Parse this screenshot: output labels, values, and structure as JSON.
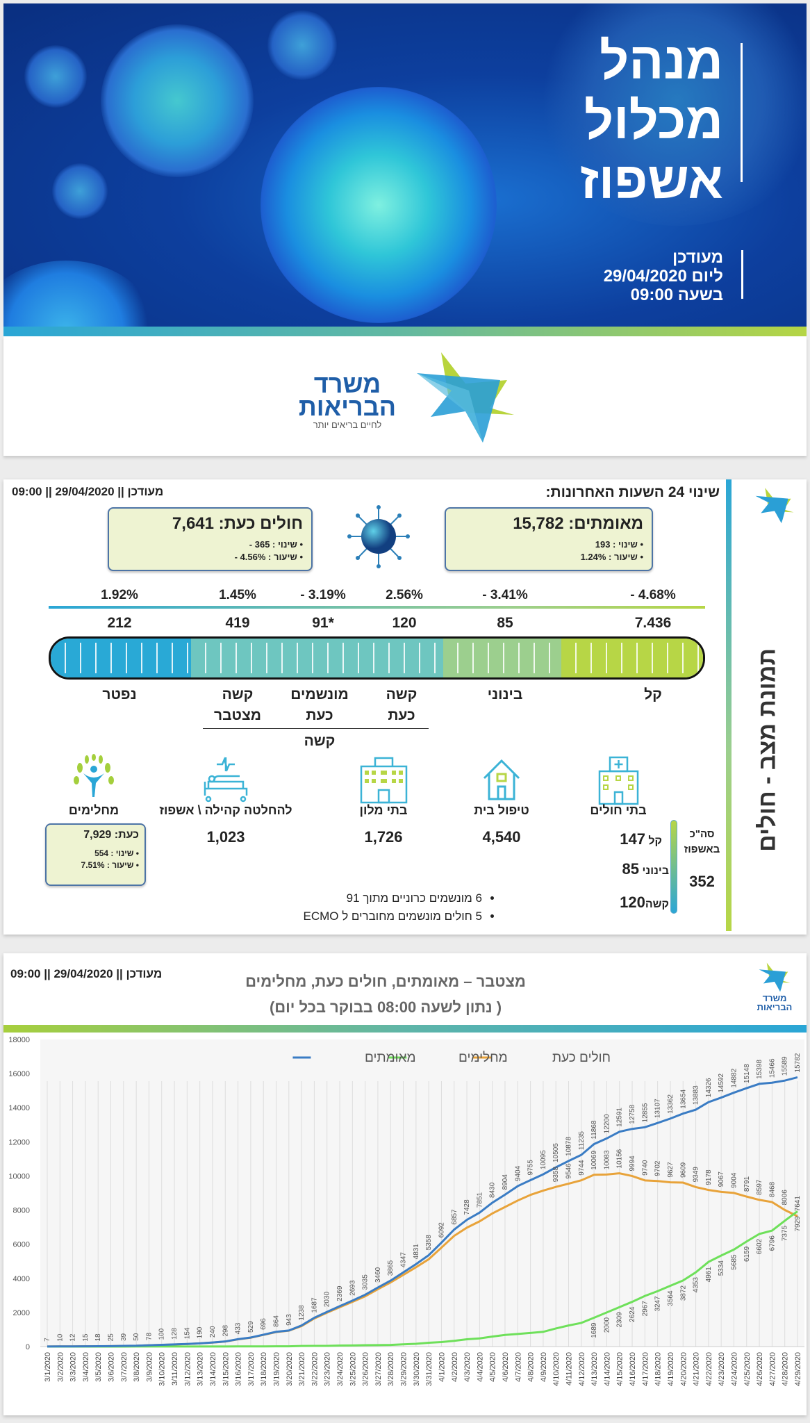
{
  "banner": {
    "title_lines": [
      "מנהל",
      "מכלול",
      "אשפוז"
    ],
    "subtitle_lines": [
      "מעודכן",
      "ליום 29/04/2020",
      "בשעה 09:00"
    ]
  },
  "logo": {
    "name_line1": "משרד",
    "name_line2": "הבריאות",
    "slogan": "לחיים בריאים יותר"
  },
  "status_card": {
    "vertical_title": "תמונת מצב - חולים",
    "updated": "מעודכן || 29/04/2020 || 09:00",
    "heading": "שינוי 24 השעות האחרונות:",
    "confirmed": {
      "label": "מאומתים:",
      "value": "15,782",
      "change": "• שינוי : 193",
      "rate": "• שיעור : 1.24%"
    },
    "active": {
      "label": "חולים כעת:",
      "value": "7,641",
      "change": "• שינוי : 365 -",
      "rate": "• שיעור : 4.56% -"
    },
    "severity": [
      {
        "label_lines": [
          "נפטר"
        ],
        "count": "212",
        "change": "1.92%",
        "color": "#29a9d6"
      },
      {
        "label_lines": [
          "קשה",
          "מצטבר"
        ],
        "count": "419",
        "change": "1.45%",
        "color": "#6ec6c0"
      },
      {
        "label_lines": [
          "מונשמים",
          "כעת"
        ],
        "count": "91*",
        "change": "- 3.19%",
        "color": "#6ec6c0"
      },
      {
        "label_lines": [
          "קשה",
          "כעת"
        ],
        "count": "120",
        "change": "2.56%",
        "color": "#6ec6c0"
      },
      {
        "label_lines": [
          "בינוני"
        ],
        "count": "85",
        "change": "- 3.41%",
        "color": "#9ccf8e"
      },
      {
        "label_lines": [
          "קל"
        ],
        "count": "7.436",
        "change": "- 4.68%",
        "color": "#b7d646"
      }
    ],
    "severe_group_label": "קשה",
    "locations": [
      {
        "icon": "recovered-person-icon",
        "label": "מחלימים"
      },
      {
        "icon": "hospital-bed-icon",
        "label": "להחלטה קהילה \\ אשפוז",
        "value": "1,023"
      },
      {
        "icon": "hotel-icon",
        "label": "בתי מלון",
        "value": "1,726"
      },
      {
        "icon": "house-icon",
        "label": "טיפול בית",
        "value": "4,540"
      },
      {
        "icon": "hospital-icon",
        "label": "בתי חולים"
      }
    ],
    "recovered_box": {
      "label": "כעת:",
      "value": "7,929",
      "change": "• שינוי : 554",
      "rate": "• שיעור : 7.51%"
    },
    "hospital_breakdown": [
      {
        "label": "קל",
        "value": "147"
      },
      {
        "label": "בינוני",
        "value": "85"
      },
      {
        "label": "קשה",
        "value": "120"
      }
    ],
    "hospital_total_label": "סה\"כ באשפוז",
    "hospital_total": "352",
    "notes": [
      "6 מונשמים כרוניים מתוך 91",
      "5 חולים מונשמים מחוברים ל ECMO"
    ]
  },
  "chart_card": {
    "updated": "מעודכן || 29/04/2020 || 09:00",
    "title_line1": "מצטבר – מאומתים, חולים כעת, מחלימים",
    "title_line2": "( נתון לשעה 08:00 בבוקר בכל יום)",
    "logo_line1": "משרד",
    "logo_line2": "הבריאות"
  },
  "chart_data": {
    "type": "line",
    "legend_position": "top-center",
    "ylim": [
      0,
      18000
    ],
    "yticks": [
      0,
      2000,
      4000,
      6000,
      8000,
      10000,
      12000,
      14000,
      16000,
      18000
    ],
    "grid": "vertical",
    "x": [
      "3/1/2020",
      "3/2/2020",
      "3/3/2020",
      "3/4/2020",
      "3/5/2020",
      "3/6/2020",
      "3/7/2020",
      "3/8/2020",
      "3/9/2020",
      "3/10/2020",
      "3/11/2020",
      "3/12/2020",
      "3/13/2020",
      "3/14/2020",
      "3/15/2020",
      "3/16/2020",
      "3/17/2020",
      "3/18/2020",
      "3/19/2020",
      "3/20/2020",
      "3/21/2020",
      "3/22/2020",
      "3/23/2020",
      "3/24/2020",
      "3/25/2020",
      "3/26/2020",
      "3/27/2020",
      "3/28/2020",
      "3/29/2020",
      "3/30/2020",
      "3/31/2020",
      "4/1/2020",
      "4/2/2020",
      "4/3/2020",
      "4/4/2020",
      "4/5/2020",
      "4/6/2020",
      "4/7/2020",
      "4/8/2020",
      "4/9/2020",
      "4/10/2020",
      "4/11/2020",
      "4/12/2020",
      "4/13/2020",
      "4/14/2020",
      "4/15/2020",
      "4/16/2020",
      "4/17/2020",
      "4/18/2020",
      "4/19/2020",
      "4/20/2020",
      "4/21/2020",
      "4/22/2020",
      "4/23/2020",
      "4/24/2020",
      "4/25/2020",
      "4/26/2020",
      "4/27/2020",
      "4/28/2020",
      "4/29/2020"
    ],
    "series": [
      {
        "name": "מאומתים",
        "color": "#3a7cc4",
        "values": [
          7,
          10,
          12,
          15,
          18,
          25,
          39,
          50,
          78,
          100,
          128,
          154,
          190,
          240,
          298,
          433,
          529,
          696,
          864,
          943,
          1238,
          1687,
          2030,
          2369,
          2693,
          3035,
          3460,
          3865,
          4347,
          4831,
          5358,
          6092,
          6857,
          7428,
          7851,
          8430,
          8904,
          9404,
          9755,
          10095,
          10505,
          10878,
          11235,
          11868,
          12200,
          12591,
          12758,
          12855,
          13107,
          13362,
          13654,
          13883,
          14326,
          14592,
          14882,
          15148,
          15398,
          15466,
          15589,
          15782
        ]
      },
      {
        "name": "מחלימים",
        "color": "#6ee05a",
        "values": [
          1,
          1,
          1,
          1,
          1,
          2,
          2,
          4,
          4,
          4,
          4,
          4,
          4,
          4,
          4,
          11,
          11,
          11,
          15,
          15,
          37,
          41,
          43,
          59,
          68,
          79,
          89,
          95,
          132,
          161,
          224,
          266,
          338,
          427,
          477,
          585,
          683,
          740,
          801,
          864,
          1061,
          1236,
          1388,
          1689,
          2000,
          2309,
          2624,
          2967,
          3247,
          3564,
          3872,
          4353,
          4961,
          5334,
          5685,
          6159,
          6602,
          6796,
          7375,
          7929
        ]
      },
      {
        "name": "חולים כעת",
        "color": "#e8a33a",
        "values": [
          6,
          9,
          11,
          14,
          17,
          23,
          37,
          46,
          74,
          96,
          124,
          150,
          186,
          236,
          294,
          422,
          518,
          685,
          849,
          928,
          1200,
          1645,
          1985,
          2305,
          2620,
          2945,
          3360,
          3760,
          4200,
          4650,
          5120,
          5800,
          6490,
          6970,
          7340,
          7800,
          8180,
          8560,
          8890,
          9140,
          9358,
          9546,
          9744,
          10069,
          10083,
          10156,
          9994,
          9740,
          9702,
          9627,
          9609,
          9349,
          9178,
          9067,
          9004,
          8791,
          8597,
          8468,
          8006,
          7641
        ]
      }
    ]
  }
}
